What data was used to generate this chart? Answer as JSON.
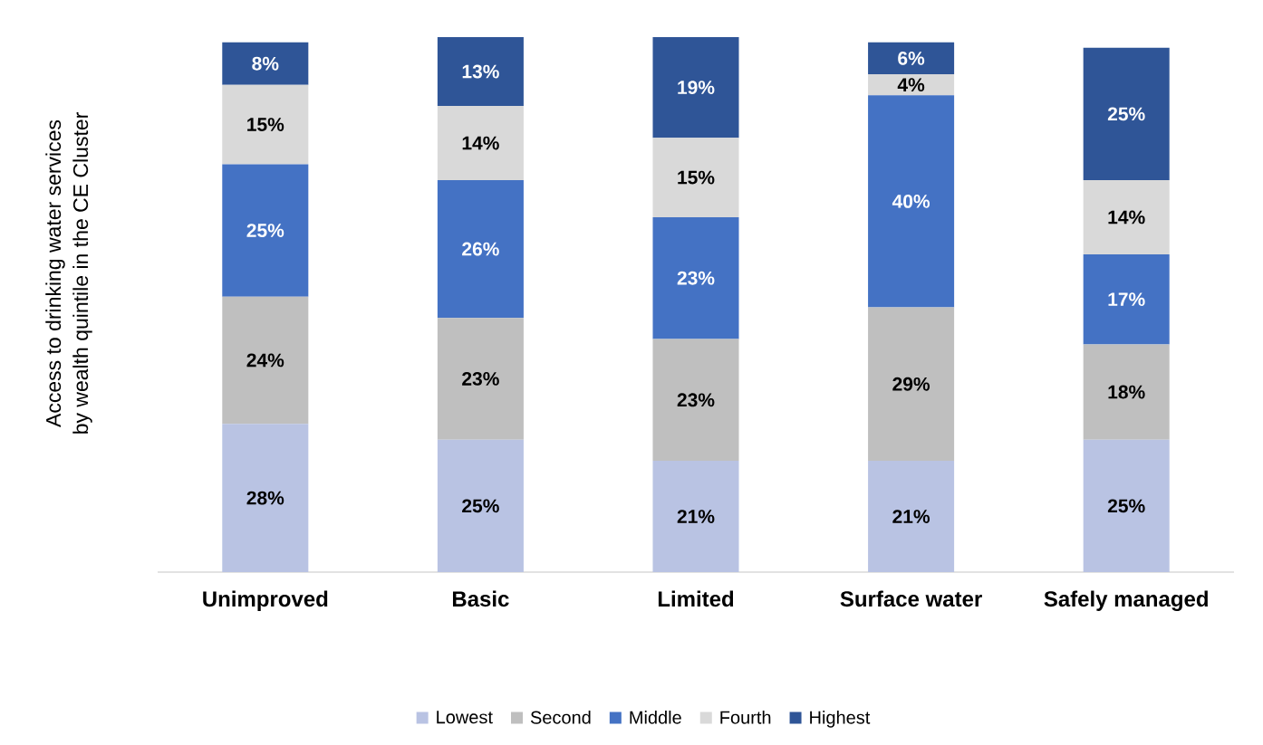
{
  "chart_data": {
    "type": "bar",
    "stacked": true,
    "ylabel": "Access to drinking water services by wealth quintile in the CE Cluster",
    "categories": [
      "Unimproved",
      "Basic",
      "Limited",
      "Surface water",
      "Safely managed"
    ],
    "series": [
      {
        "name": "Lowest",
        "color": "#b9c3e3",
        "values": [
          28,
          25,
          21,
          21,
          25
        ],
        "value_labels": [
          "28%",
          "25%",
          "21%",
          "21%",
          "25%"
        ]
      },
      {
        "name": "Second",
        "color": "#bfbfbf",
        "values": [
          24,
          23,
          23,
          29,
          18
        ],
        "value_labels": [
          "24%",
          "23%",
          "23%",
          "29%",
          "18%"
        ]
      },
      {
        "name": "Middle",
        "color": "#4472c4",
        "values": [
          25,
          26,
          23,
          40,
          17
        ],
        "value_labels": [
          "25%",
          "26%",
          "23%",
          "40%",
          "17%"
        ]
      },
      {
        "name": "Fourth",
        "color": "#d9d9d9",
        "values": [
          15,
          14,
          15,
          4,
          14
        ],
        "value_labels": [
          "15%",
          "14%",
          "15%",
          "4%",
          "14%"
        ]
      },
      {
        "name": "Highest",
        "color": "#2f5597",
        "values": [
          8,
          13,
          19,
          6,
          25
        ],
        "value_labels": [
          "8%",
          "13%",
          "19%",
          "6%",
          "25%"
        ]
      }
    ],
    "legend": "bottom"
  }
}
